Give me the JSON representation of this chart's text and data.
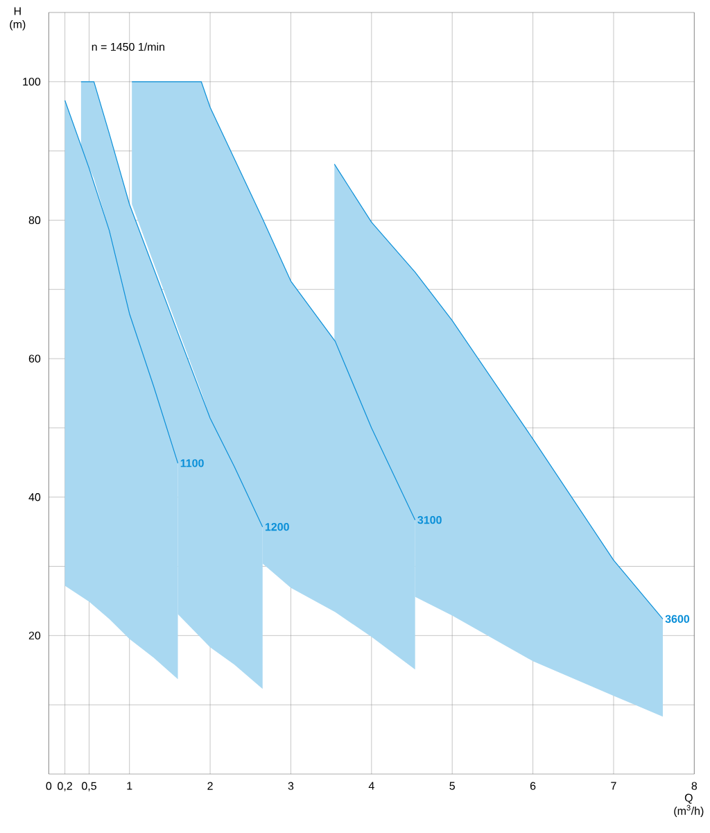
{
  "chart_data": {
    "type": "line",
    "xlabel": "Q (m$^{3}$/h)",
    "ylabel": "H (m)",
    "annotations": [
      "n = 1450 1/min"
    ],
    "xlim": [
      0,
      8
    ],
    "xticks": [
      {
        "value": 0,
        "label": "0"
      },
      {
        "value": 0.2,
        "label": "0,2"
      },
      {
        "value": 0.5,
        "label": "0,5"
      },
      {
        "value": 1,
        "label": "1"
      },
      {
        "value": 2,
        "label": "2"
      },
      {
        "value": 3,
        "label": "3"
      },
      {
        "value": 4,
        "label": "4"
      },
      {
        "value": 5,
        "label": "5"
      },
      {
        "value": 6,
        "label": "6"
      },
      {
        "value": 7,
        "label": "7"
      },
      {
        "value": 8,
        "label": "8"
      }
    ],
    "ylim": [
      0,
      110
    ],
    "yticks": [
      {
        "value": 10,
        "label": null
      },
      {
        "value": 20,
        "label": "20"
      },
      {
        "value": 30,
        "label": null
      },
      {
        "value": 40,
        "label": "40"
      },
      {
        "value": 50,
        "label": null
      },
      {
        "value": 60,
        "label": "60"
      },
      {
        "value": 70,
        "label": null
      },
      {
        "value": 80,
        "label": "80"
      },
      {
        "value": 90,
        "label": null
      },
      {
        "value": 100,
        "label": "100"
      }
    ],
    "grid": true,
    "series": [
      {
        "name": "1100",
        "color": "#0a8fd8",
        "x": [
          0.2,
          0.5,
          0.75,
          1,
          1.3,
          1.6
        ],
        "values": [
          97.3,
          87.5,
          78.5,
          66.5,
          56,
          44.9
        ],
        "upper": [
          97.3,
          87.5,
          78.5,
          66.5,
          56,
          44.9
        ],
        "lower": [
          27.2,
          24.9,
          22.4,
          19.5,
          16.8,
          13.7
        ]
      },
      {
        "name": "1200",
        "color": "#0a8fd8",
        "x": [
          0.4,
          0.56,
          0.75,
          1,
          1.3,
          1.6,
          1.6,
          2,
          2.3,
          2.65
        ],
        "values": [
          100,
          100,
          92.5,
          82.3,
          73,
          63.7,
          63.7,
          51.4,
          44.4,
          35.7
        ],
        "upper": [
          100,
          100,
          92.5,
          82.3,
          73,
          63.7,
          63.7,
          51.4,
          44.4,
          35.7
        ],
        "lower": [
          90.3,
          86,
          78.5,
          66.5,
          56,
          44.9,
          23.1,
          18.3,
          15.8,
          12.3
        ]
      },
      {
        "name": "3100",
        "color": "#0a8fd8",
        "x": [
          1.03,
          1.89,
          2,
          2.65,
          2.65,
          3,
          3.55,
          4,
          4.54
        ],
        "values": [
          100,
          100,
          96.3,
          80.2,
          80.2,
          71.2,
          62.5,
          50,
          36.7
        ],
        "upper": [
          100,
          100,
          96.3,
          80.2,
          80.2,
          71.2,
          62.5,
          50,
          36.7
        ],
        "lower": [
          82.3,
          55.2,
          51.4,
          35.7,
          30.4,
          26.9,
          23.4,
          19.8,
          15.1
        ]
      },
      {
        "name": "3600",
        "color": "#0a8fd8",
        "x": [
          3.54,
          4,
          4.54,
          4.54,
          5,
          6,
          7,
          7.61
        ],
        "values": [
          88.1,
          79.7,
          72.5,
          72.5,
          65.5,
          48.4,
          30.9,
          22.4
        ],
        "upper": [
          88.1,
          79.7,
          72.5,
          72.5,
          65.5,
          48.4,
          30.9,
          22.4
        ],
        "lower": [
          62.5,
          50,
          36.7,
          25.6,
          22.9,
          16.3,
          11.3,
          8.3
        ]
      }
    ]
  }
}
